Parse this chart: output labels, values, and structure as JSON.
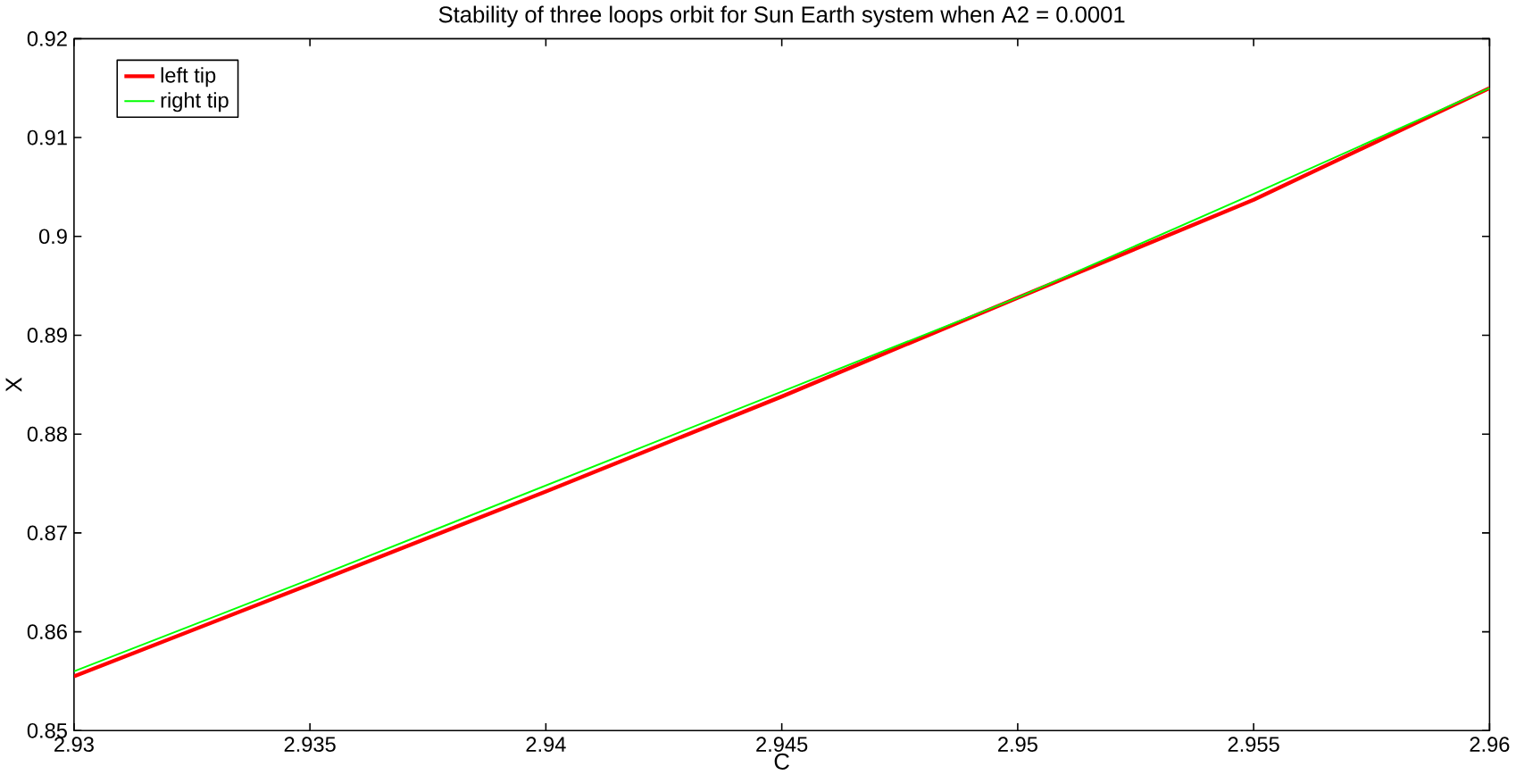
{
  "chart_data": {
    "type": "line",
    "title": "Stability of three loops orbit for Sun Earth system when A2 = 0.0001",
    "xlabel": "C",
    "ylabel": "X",
    "x": [
      2.93,
      2.935,
      2.94,
      2.945,
      2.95,
      2.955,
      2.96
    ],
    "series": [
      {
        "name": "left tip",
        "color": "#ff0000",
        "values": [
          0.8555,
          0.8648,
          0.8742,
          0.8838,
          0.8938,
          0.9037,
          0.915
        ]
      },
      {
        "name": "right tip",
        "color": "#00ff00",
        "values": [
          0.856,
          0.8653,
          0.8748,
          0.8843,
          0.8938,
          0.9043,
          0.915
        ]
      }
    ],
    "xlim": [
      2.93,
      2.96
    ],
    "ylim": [
      0.85,
      0.92
    ],
    "xticks": [
      2.93,
      2.935,
      2.94,
      2.945,
      2.95,
      2.955,
      2.96
    ],
    "yticks": [
      0.85,
      0.86,
      0.87,
      0.88,
      0.89,
      0.9,
      0.91,
      0.92
    ],
    "legend": "top left",
    "grid": false,
    "marker": "none",
    "line_style": "solid"
  }
}
